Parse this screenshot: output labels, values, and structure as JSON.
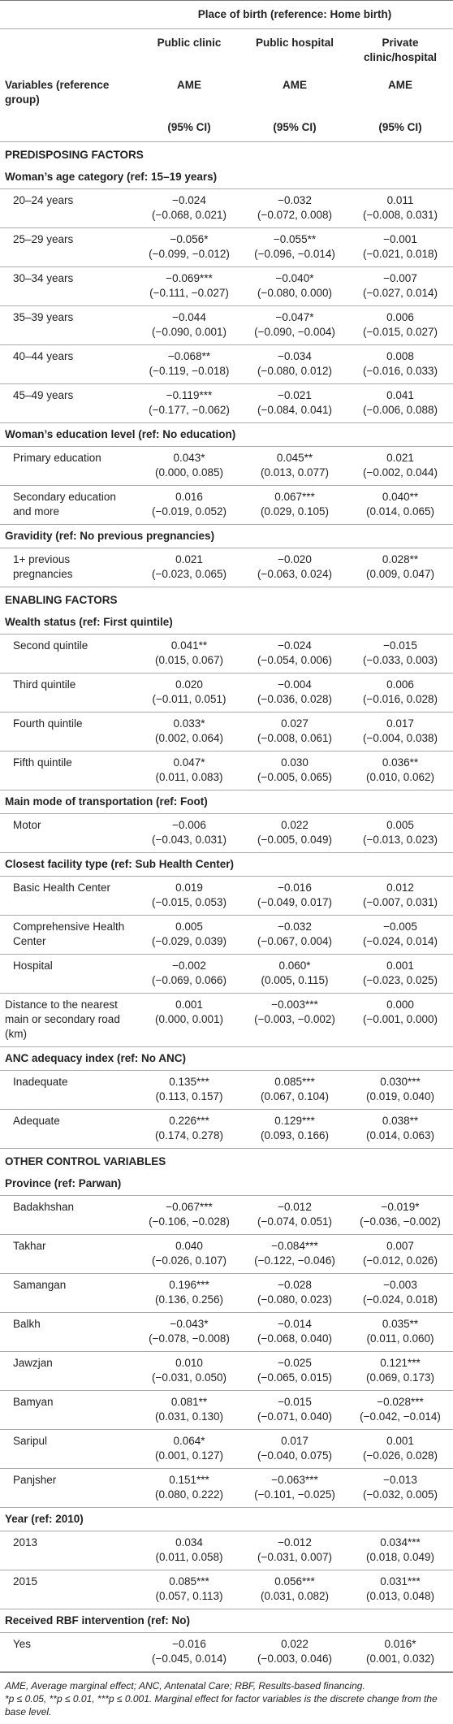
{
  "header": {
    "spanner": "Place of birth (reference: Home birth)",
    "columns": [
      "Public clinic",
      "Public hospital",
      "Private clinic/hospital"
    ],
    "variables_label": "Variables (reference group)",
    "measure": [
      "AME",
      "AME",
      "AME"
    ],
    "ci": [
      "(95% CI)",
      "(95% CI)",
      "(95% CI)"
    ]
  },
  "sections": [
    {
      "title": "PREDISPOSING FACTORS",
      "groups": [
        {
          "title": "Woman’s age category (ref: 15–19 years)",
          "rows": [
            {
              "label": "20–24 years",
              "cells": [
                [
                  "−0.024",
                  "(−0.068, 0.021)"
                ],
                [
                  "−0.032",
                  "(−0.072, 0.008)"
                ],
                [
                  "0.011",
                  "(−0.008, 0.031)"
                ]
              ]
            },
            {
              "label": "25–29 years",
              "cells": [
                [
                  "−0.056*",
                  "(−0.099, −0.012)"
                ],
                [
                  "−0.055**",
                  "(−0.096, −0.014)"
                ],
                [
                  "−0.001",
                  "(−0.021, 0.018)"
                ]
              ]
            },
            {
              "label": "30–34 years",
              "cells": [
                [
                  "−0.069***",
                  "(−0.111, −0.027)"
                ],
                [
                  "−0.040*",
                  "(−0.080, 0.000)"
                ],
                [
                  "−0.007",
                  "(−0.027, 0.014)"
                ]
              ]
            },
            {
              "label": "35–39 years",
              "cells": [
                [
                  "−0.044",
                  "(−0.090, 0.001)"
                ],
                [
                  "−0.047*",
                  "(−0.090, −0.004)"
                ],
                [
                  "0.006",
                  "(−0.015, 0.027)"
                ]
              ]
            },
            {
              "label": "40–44 years",
              "cells": [
                [
                  "−0.068**",
                  "(−0.119, −0.018)"
                ],
                [
                  "−0.034",
                  "(−0.080, 0.012)"
                ],
                [
                  "0.008",
                  "(−0.016, 0.033)"
                ]
              ]
            },
            {
              "label": "45–49 years",
              "cells": [
                [
                  "−0.119***",
                  "(−0.177, −0.062)"
                ],
                [
                  "−0.021",
                  "(−0.084, 0.041)"
                ],
                [
                  "0.041",
                  "(−0.006, 0.088)"
                ]
              ]
            }
          ]
        },
        {
          "title": "Woman’s education level (ref: No education)",
          "rows": [
            {
              "label": "Primary education",
              "cells": [
                [
                  "0.043*",
                  "(0.000, 0.085)"
                ],
                [
                  "0.045**",
                  "(0.013, 0.077)"
                ],
                [
                  "0.021",
                  "(−0.002, 0.044)"
                ]
              ]
            },
            {
              "label": "Secondary education and more",
              "cells": [
                [
                  "0.016",
                  "(−0.019, 0.052)"
                ],
                [
                  "0.067***",
                  "(0.029, 0.105)"
                ],
                [
                  "0.040**",
                  "(0.014, 0.065)"
                ]
              ]
            }
          ]
        },
        {
          "title": "Gravidity (ref: No previous pregnancies)",
          "rows": [
            {
              "label": "1+ previous pregnancies",
              "cells": [
                [
                  "0.021",
                  "(−0.023, 0.065)"
                ],
                [
                  "−0.020",
                  "(−0.063, 0.024)"
                ],
                [
                  "0.028**",
                  "(0.009, 0.047)"
                ]
              ]
            }
          ]
        }
      ]
    },
    {
      "title": "ENABLING FACTORS",
      "groups": [
        {
          "title": "Wealth status (ref: First quintile)",
          "rows": [
            {
              "label": "Second quintile",
              "cells": [
                [
                  "0.041**",
                  "(0.015, 0.067)"
                ],
                [
                  "−0.024",
                  "(−0.054, 0.006)"
                ],
                [
                  "−0.015",
                  "(−0.033, 0.003)"
                ]
              ]
            },
            {
              "label": "Third quintile",
              "cells": [
                [
                  "0.020",
                  "(−0.011, 0.051)"
                ],
                [
                  "−0.004",
                  "(−0.036, 0.028)"
                ],
                [
                  "0.006",
                  "(−0.016, 0.028)"
                ]
              ]
            },
            {
              "label": "Fourth quintile",
              "cells": [
                [
                  "0.033*",
                  "(0.002, 0.064)"
                ],
                [
                  "0.027",
                  "(−0.008, 0.061)"
                ],
                [
                  "0.017",
                  "(−0.004, 0.038)"
                ]
              ]
            },
            {
              "label": "Fifth quintile",
              "cells": [
                [
                  "0.047*",
                  "(0.011, 0.083)"
                ],
                [
                  "0.030",
                  "(−0.005, 0.065)"
                ],
                [
                  "0.036**",
                  "(0.010, 0.062)"
                ]
              ]
            }
          ]
        },
        {
          "title": "Main mode of transportation (ref: Foot)",
          "rows": [
            {
              "label": "Motor",
              "cells": [
                [
                  "−0.006",
                  "(−0.043, 0.031)"
                ],
                [
                  "0.022",
                  "(−0.005, 0.049)"
                ],
                [
                  "0.005",
                  "(−0.013, 0.023)"
                ]
              ]
            }
          ]
        },
        {
          "title": "Closest facility type (ref: Sub Health Center)",
          "rows": [
            {
              "label": "Basic Health Center",
              "cells": [
                [
                  "0.019",
                  "(−0.015, 0.053)"
                ],
                [
                  "−0.016",
                  "(−0.049, 0.017)"
                ],
                [
                  "0.012",
                  "(−0.007, 0.031)"
                ]
              ]
            },
            {
              "label": "Comprehensive Health Center",
              "cells": [
                [
                  "0.005",
                  "(−0.029, 0.039)"
                ],
                [
                  "−0.032",
                  "(−0.067, 0.004)"
                ],
                [
                  "−0.005",
                  "(−0.024, 0.014)"
                ]
              ]
            },
            {
              "label": "Hospital",
              "cells": [
                [
                  "−0.002",
                  "(−0.069, 0.066)"
                ],
                [
                  "0.060*",
                  "(0.005, 0.115)"
                ],
                [
                  "0.001",
                  "(−0.023, 0.025)"
                ]
              ]
            }
          ]
        },
        {
          "rows": [
            {
              "label": "Distance to the nearest main or secondary road (km)",
              "cells": [
                [
                  "0.001",
                  "(0.000, 0.001)"
                ],
                [
                  "−0.003***",
                  "(−0.003, −0.002)"
                ],
                [
                  "0.000",
                  "(−0.001, 0.000)"
                ]
              ]
            }
          ]
        },
        {
          "title": "ANC adequacy index (ref: No ANC)",
          "rows": [
            {
              "label": "Inadequate",
              "cells": [
                [
                  "0.135***",
                  "(0.113, 0.157)"
                ],
                [
                  "0.085***",
                  "(0.067, 0.104)"
                ],
                [
                  "0.030***",
                  "(0.019, 0.040)"
                ]
              ]
            },
            {
              "label": "Adequate",
              "cells": [
                [
                  "0.226***",
                  "(0.174, 0.278)"
                ],
                [
                  "0.129***",
                  "(0.093, 0.166)"
                ],
                [
                  "0.038**",
                  "(0.014, 0.063)"
                ]
              ]
            }
          ]
        }
      ]
    },
    {
      "title": "OTHER CONTROL VARIABLES",
      "groups": [
        {
          "title": "Province (ref: Parwan)",
          "rows": [
            {
              "label": "Badakhshan",
              "cells": [
                [
                  "−0.067***",
                  "(−0.106, −0.028)"
                ],
                [
                  "−0.012",
                  "(−0.074, 0.051)"
                ],
                [
                  "−0.019*",
                  "(−0.036, −0.002)"
                ]
              ]
            },
            {
              "label": "Takhar",
              "cells": [
                [
                  "0.040",
                  "(−0.026, 0.107)"
                ],
                [
                  "−0.084***",
                  "(−0.122, −0.046)"
                ],
                [
                  "0.007",
                  "(−0.012, 0.026)"
                ]
              ]
            },
            {
              "label": "Samangan",
              "cells": [
                [
                  "0.196***",
                  "(0.136, 0.256)"
                ],
                [
                  "−0.028",
                  "(−0.080, 0.023)"
                ],
                [
                  "−0.003",
                  "(−0.024, 0.018)"
                ]
              ]
            },
            {
              "label": "Balkh",
              "cells": [
                [
                  "−0.043*",
                  "(−0.078, −0.008)"
                ],
                [
                  "−0.014",
                  "(−0.068, 0.040)"
                ],
                [
                  "0.035**",
                  "(0.011, 0.060)"
                ]
              ]
            },
            {
              "label": "Jawzjan",
              "cells": [
                [
                  "0.010",
                  "(−0.031, 0.050)"
                ],
                [
                  "−0.025",
                  "(−0.065, 0.015)"
                ],
                [
                  "0.121***",
                  "(0.069, 0.173)"
                ]
              ]
            },
            {
              "label": "Bamyan",
              "cells": [
                [
                  "0.081**",
                  "(0.031, 0.130)"
                ],
                [
                  "−0.015",
                  "(−0.071, 0.040)"
                ],
                [
                  "−0.028***",
                  "(−0.042, −0.014)"
                ]
              ]
            },
            {
              "label": "Saripul",
              "cells": [
                [
                  "0.064*",
                  "(0.001, 0.127)"
                ],
                [
                  "0.017",
                  "(−0.040, 0.075)"
                ],
                [
                  "0.001",
                  "(−0.026, 0.028)"
                ]
              ]
            },
            {
              "label": "Panjsher",
              "cells": [
                [
                  "0.151***",
                  "(0.080, 0.222)"
                ],
                [
                  "−0.063***",
                  "(−0.101, −0.025)"
                ],
                [
                  "−0.013",
                  "(−0.032, 0.005)"
                ]
              ]
            }
          ]
        },
        {
          "title": "Year (ref: 2010)",
          "rows": [
            {
              "label": "2013",
              "cells": [
                [
                  "0.034",
                  "(0.011, 0.058)"
                ],
                [
                  "−0.012",
                  "(−0.031, 0.007)"
                ],
                [
                  "0.034***",
                  "(0.018, 0.049)"
                ]
              ]
            },
            {
              "label": "2015",
              "cells": [
                [
                  "0.085***",
                  "(0.057, 0.113)"
                ],
                [
                  "0.056***",
                  "(0.031, 0.082)"
                ],
                [
                  "0.031***",
                  "(0.013, 0.048)"
                ]
              ]
            }
          ]
        },
        {
          "title": "Received RBF intervention (ref: No)",
          "rows": [
            {
              "label": "Yes",
              "cells": [
                [
                  "−0.016",
                  "(−0.045, 0.014)"
                ],
                [
                  "0.022",
                  "(−0.003, 0.046)"
                ],
                [
                  "0.016*",
                  "(0.001, 0.032)"
                ]
              ]
            }
          ]
        }
      ]
    }
  ],
  "footnotes": [
    "AME, Average marginal effect; ANC, Antenatal Care; RBF, Results-based financing.",
    "*p ≤ 0.05, **p ≤ 0.01, ***p ≤ 0.001. Marginal effect for factor variables is the discrete change from the base level."
  ]
}
